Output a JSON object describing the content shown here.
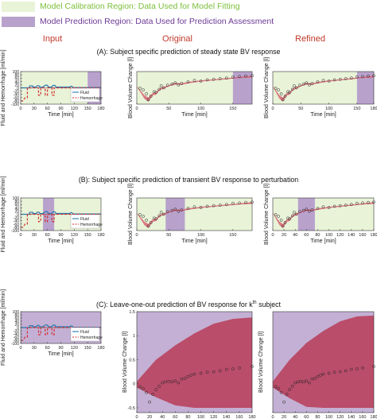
{
  "legend": {
    "calibration": {
      "label": "Model Calibration Region: Data Used for Model Fitting",
      "color": "#e8f3d8"
    },
    "prediction": {
      "label": "Model Prediction Region: Data Used for Prediction Assessment",
      "color": "#b8a2cc"
    }
  },
  "columns": {
    "input": "Input",
    "original": "Original",
    "refined": "Refined"
  },
  "colors": {
    "fluid": "#2a7ab0",
    "hemorrhage": "#d32f2f",
    "band": "#d75a6a",
    "band_dark": "#b72c47",
    "line": "#e9a08a"
  },
  "chart_data": [
    {
      "row": "A",
      "title": "(A): Subject specific prediction of steady state BV response",
      "input": {
        "type": "line",
        "xlabel": "Time [min]",
        "ylabel": "Fluid and Hemorrhage [ml/min]",
        "xlim": [
          0,
          180
        ],
        "ylim": [
          -100,
          100
        ],
        "xticks": [
          0,
          30,
          60,
          90,
          120,
          150,
          180
        ],
        "yticks": [
          -100,
          -80,
          -60,
          -40,
          -20,
          0,
          20,
          40,
          60,
          80,
          100
        ],
        "legend": [
          "Fluid",
          "Hemorrhage"
        ],
        "calibration": [
          0,
          150
        ],
        "prediction": [
          150,
          180
        ]
      },
      "original": {
        "type": "line",
        "xlabel": "Time [min]",
        "ylabel": "Blood Volume Change [l]",
        "xlim": [
          0,
          180
        ],
        "xticks": [
          0,
          50,
          100,
          150
        ],
        "calibration": [
          0,
          150
        ],
        "prediction": [
          150,
          180
        ]
      },
      "refined": {
        "type": "line",
        "xlabel": "Time [min]",
        "ylabel": "Blood Volume Change [l]",
        "xlim": [
          0,
          180
        ],
        "xticks": [
          0,
          50,
          100,
          150,
          180
        ],
        "calibration": [
          0,
          150
        ],
        "prediction": [
          150,
          180
        ]
      }
    },
    {
      "row": "B",
      "title": "(B): Subject specific prediction of transient BV response to perturbation",
      "input": {
        "type": "line",
        "xlabel": "Time [min]",
        "ylabel": "Fluid and Hemorrhage [ml/min]",
        "xlim": [
          0,
          180
        ],
        "ylim": [
          -100,
          100
        ],
        "xticks": [
          0,
          30,
          60,
          90,
          120,
          150,
          180
        ],
        "yticks": [
          -100,
          -80,
          -60,
          -40,
          -20,
          0,
          20,
          40,
          60,
          80,
          100
        ],
        "legend": [
          "Fluid",
          "Hemorrhage"
        ],
        "prediction": [
          50,
          75
        ]
      },
      "original": {
        "type": "line",
        "xlabel": "Time [min]",
        "ylabel": "Blood Volume Change [l]",
        "xlim": [
          0,
          180
        ],
        "xticks": [
          0,
          50,
          100,
          150
        ],
        "prediction": [
          45,
          75
        ]
      },
      "refined": {
        "type": "line",
        "xlabel": "Time [min]",
        "ylabel": "Blood Volume Change [l]",
        "xlim": [
          0,
          180
        ],
        "xticks": [
          0,
          20,
          40,
          60,
          80,
          100,
          120,
          140,
          160,
          180
        ],
        "prediction": [
          45,
          75
        ]
      }
    },
    {
      "row": "C",
      "title_main": "(C): Leave-one-out prediction of BV response for k",
      "title_sup": "th",
      "title_end": " subject",
      "input": {
        "type": "line",
        "xlabel": "Time [min]",
        "ylabel": "Fluid and Hemorrhage [ml/min]",
        "xlim": [
          0,
          180
        ],
        "ylim": [
          -100,
          100
        ],
        "xticks": [
          0,
          30,
          60,
          90,
          120,
          150,
          180
        ],
        "yticks": [
          -100,
          -80,
          -60,
          -40,
          -20,
          0,
          20,
          40,
          60,
          80,
          100
        ],
        "legend": [
          "Fluid",
          "Hemorrhage"
        ],
        "prediction": [
          0,
          180
        ]
      },
      "original": {
        "type": "area",
        "xlabel": "Time [min]",
        "ylabel": "Blood Volume Change [l]",
        "xlim": [
          0,
          180
        ],
        "ylim": [
          -0.6,
          1.5
        ],
        "xticks": [
          0,
          20,
          40,
          60,
          80,
          100,
          120,
          140,
          160,
          180
        ],
        "yticks": [
          -0.5,
          0,
          0.5,
          1,
          1.5
        ],
        "prediction": [
          0,
          180
        ],
        "band_upper": [
          [
            0,
            0.05
          ],
          [
            30,
            0.5
          ],
          [
            60,
            0.8
          ],
          [
            90,
            1.05
          ],
          [
            120,
            1.25
          ],
          [
            150,
            1.35
          ],
          [
            180,
            1.38
          ]
        ],
        "band_lower": [
          [
            0,
            -0.08
          ],
          [
            30,
            -0.28
          ],
          [
            60,
            -0.45
          ],
          [
            90,
            -0.5
          ],
          [
            120,
            -0.5
          ],
          [
            150,
            -0.5
          ],
          [
            180,
            -0.5
          ]
        ],
        "points": [
          [
            5,
            -0.06
          ],
          [
            10,
            -0.1
          ],
          [
            15,
            -0.18
          ],
          [
            20,
            -0.38
          ],
          [
            25,
            -0.22
          ],
          [
            30,
            -0.12
          ],
          [
            35,
            -0.05
          ],
          [
            40,
            0.02
          ],
          [
            45,
            0.04
          ],
          [
            50,
            0.05
          ],
          [
            55,
            0.04
          ],
          [
            60,
            0.06
          ],
          [
            65,
            0.02
          ],
          [
            70,
            0.1
          ],
          [
            75,
            0.11
          ],
          [
            80,
            0.15
          ],
          [
            85,
            0.18
          ],
          [
            90,
            0.2
          ],
          [
            100,
            0.22
          ],
          [
            110,
            0.24
          ],
          [
            120,
            0.25
          ],
          [
            130,
            0.27
          ],
          [
            140,
            0.3
          ],
          [
            150,
            0.31
          ],
          [
            160,
            0.33
          ],
          [
            180,
            0.36
          ]
        ]
      },
      "refined": {
        "type": "area",
        "xlabel": "Time [min]",
        "ylabel": "Blood Volume Change [l]",
        "xlim": [
          0,
          180
        ],
        "ylim": [
          -0.6,
          1.5
        ],
        "xticks": [
          0,
          20,
          40,
          60,
          80,
          100,
          120,
          140,
          160,
          180
        ],
        "prediction": [
          0,
          180
        ],
        "band_upper": [
          [
            0,
            0.05
          ],
          [
            30,
            0.5
          ],
          [
            60,
            0.85
          ],
          [
            90,
            1.1
          ],
          [
            120,
            1.3
          ],
          [
            150,
            1.4
          ],
          [
            180,
            1.42
          ]
        ],
        "band_lower": [
          [
            0,
            -0.08
          ],
          [
            30,
            -0.3
          ],
          [
            60,
            -0.48
          ],
          [
            90,
            -0.5
          ],
          [
            120,
            -0.5
          ],
          [
            150,
            -0.5
          ],
          [
            180,
            -0.5
          ]
        ],
        "points": [
          [
            5,
            -0.06
          ],
          [
            10,
            -0.1
          ],
          [
            15,
            -0.18
          ],
          [
            20,
            -0.38
          ],
          [
            25,
            -0.22
          ],
          [
            30,
            -0.12
          ],
          [
            35,
            -0.05
          ],
          [
            40,
            0.02
          ],
          [
            45,
            0.04
          ],
          [
            50,
            0.05
          ],
          [
            55,
            0.04
          ],
          [
            60,
            0.06
          ],
          [
            65,
            0.02
          ],
          [
            70,
            0.1
          ],
          [
            75,
            0.11
          ],
          [
            80,
            0.15
          ],
          [
            85,
            0.18
          ],
          [
            90,
            0.2
          ],
          [
            100,
            0.22
          ],
          [
            110,
            0.24
          ],
          [
            120,
            0.25
          ],
          [
            130,
            0.27
          ],
          [
            140,
            0.3
          ],
          [
            150,
            0.31
          ],
          [
            160,
            0.33
          ],
          [
            180,
            0.36
          ]
        ]
      }
    }
  ],
  "bv_rows": {
    "ylim": [
      -0.6,
      0.5
    ],
    "points": [
      [
        5,
        -0.06
      ],
      [
        10,
        -0.12
      ],
      [
        15,
        -0.25
      ],
      [
        18,
        -0.45
      ],
      [
        22,
        -0.33
      ],
      [
        27,
        -0.18
      ],
      [
        30,
        -0.2
      ],
      [
        35,
        -0.1
      ],
      [
        38,
        0.02
      ],
      [
        42,
        -0.05
      ],
      [
        48,
        0.04
      ],
      [
        55,
        0.08
      ],
      [
        60,
        0.12
      ],
      [
        65,
        0.05
      ],
      [
        70,
        0.1
      ],
      [
        80,
        0.15
      ],
      [
        90,
        0.2
      ],
      [
        100,
        0.18
      ],
      [
        110,
        0.22
      ],
      [
        120,
        0.24
      ],
      [
        130,
        0.26
      ],
      [
        140,
        0.28
      ],
      [
        150,
        0.32
      ],
      [
        160,
        0.33
      ],
      [
        170,
        0.35
      ],
      [
        180,
        0.36
      ]
    ],
    "fit_upper": [
      [
        0,
        0.0
      ],
      [
        5,
        -0.12
      ],
      [
        12,
        -0.3
      ],
      [
        18,
        -0.38
      ],
      [
        25,
        -0.22
      ],
      [
        30,
        -0.2
      ],
      [
        36,
        -0.06
      ],
      [
        42,
        -0.02
      ],
      [
        50,
        0.04
      ],
      [
        60,
        0.12
      ],
      [
        70,
        0.1
      ],
      [
        80,
        0.15
      ],
      [
        100,
        0.2
      ],
      [
        120,
        0.24
      ],
      [
        140,
        0.28
      ],
      [
        160,
        0.32
      ],
      [
        180,
        0.36
      ]
    ],
    "fit_lower": [
      [
        0,
        -0.02
      ],
      [
        5,
        -0.18
      ],
      [
        12,
        -0.42
      ],
      [
        18,
        -0.52
      ],
      [
        25,
        -0.3
      ],
      [
        30,
        -0.28
      ],
      [
        36,
        -0.12
      ],
      [
        42,
        -0.08
      ],
      [
        50,
        0.0
      ],
      [
        60,
        0.06
      ],
      [
        70,
        0.05
      ],
      [
        80,
        0.1
      ],
      [
        100,
        0.16
      ],
      [
        120,
        0.2
      ],
      [
        140,
        0.24
      ],
      [
        160,
        0.28
      ],
      [
        180,
        0.3
      ]
    ]
  },
  "input_signals": {
    "fluid": [
      [
        0,
        0
      ],
      [
        20,
        0
      ],
      [
        20,
        12
      ],
      [
        27,
        12
      ],
      [
        27,
        5
      ],
      [
        35,
        5
      ],
      [
        37,
        13
      ],
      [
        41,
        13
      ],
      [
        43,
        5
      ],
      [
        50,
        5
      ],
      [
        55,
        16
      ],
      [
        60,
        16
      ],
      [
        62,
        5
      ],
      [
        70,
        5
      ],
      [
        72,
        15
      ],
      [
        77,
        15
      ],
      [
        79,
        5
      ],
      [
        90,
        5
      ],
      [
        100,
        5
      ],
      [
        110,
        5
      ],
      [
        112,
        10
      ],
      [
        115,
        10
      ],
      [
        117,
        2
      ],
      [
        180,
        2
      ]
    ],
    "hemorrhage": [
      [
        0,
        -80
      ],
      [
        5,
        -80
      ],
      [
        10,
        -60
      ],
      [
        15,
        -60
      ],
      [
        15,
        0
      ],
      [
        40,
        0
      ],
      [
        40,
        -45
      ],
      [
        45,
        -45
      ],
      [
        45,
        0
      ],
      [
        55,
        0
      ],
      [
        55,
        -45
      ],
      [
        60,
        -45
      ],
      [
        60,
        0
      ],
      [
        70,
        0
      ],
      [
        70,
        -45
      ],
      [
        75,
        -45
      ],
      [
        75,
        0
      ],
      [
        180,
        0
      ]
    ]
  }
}
